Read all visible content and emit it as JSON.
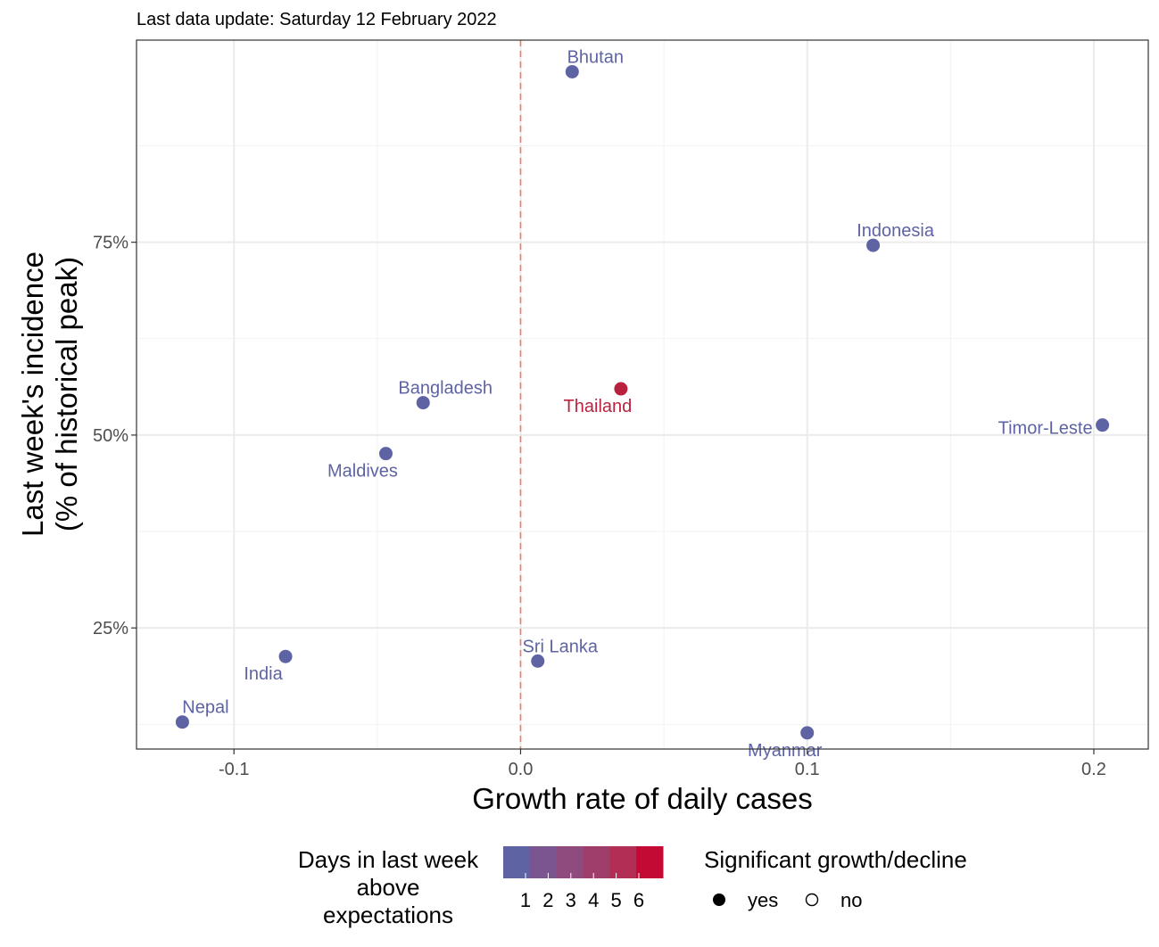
{
  "subtitle": "Last data update: Saturday 12 February 2022",
  "chart_data": {
    "type": "scatter",
    "title": "",
    "xlabel": "Growth rate of daily cases",
    "ylabel_lines": [
      "Last week's incidence",
      "(% of historical peak)"
    ],
    "xlim": [
      -0.134,
      0.219
    ],
    "ylim": [
      0.093,
      1.012
    ],
    "x_ticks": [
      -0.1,
      0.0,
      0.1,
      0.2
    ],
    "x_tick_labels": [
      "-0.1",
      "0.0",
      "0.1",
      "0.2"
    ],
    "y_ticks": [
      0.25,
      0.5,
      0.75
    ],
    "y_tick_labels": [
      "25%",
      "50%",
      "75%"
    ],
    "reference_line_x": 0,
    "grid": true,
    "points": [
      {
        "name": "Bhutan",
        "x": 0.018,
        "y": 0.971,
        "days": 1,
        "significant": "yes",
        "color": "#5e63a3"
      },
      {
        "name": "Indonesia",
        "x": 0.123,
        "y": 0.746,
        "days": 1,
        "significant": "yes",
        "color": "#5e63a3"
      },
      {
        "name": "Bangladesh",
        "x": -0.034,
        "y": 0.542,
        "days": 1,
        "significant": "yes",
        "color": "#5e63a3"
      },
      {
        "name": "Thailand",
        "x": 0.035,
        "y": 0.56,
        "days": 5,
        "significant": "yes",
        "color": "#b8223f"
      },
      {
        "name": "Timor-Leste",
        "x": 0.203,
        "y": 0.513,
        "days": 1,
        "significant": "yes",
        "color": "#5e63a3"
      },
      {
        "name": "Maldives",
        "x": -0.047,
        "y": 0.476,
        "days": 1,
        "significant": "yes",
        "color": "#5e63a3"
      },
      {
        "name": "India",
        "x": -0.082,
        "y": 0.213,
        "days": 1,
        "significant": "yes",
        "color": "#5e63a3"
      },
      {
        "name": "Sri Lanka",
        "x": 0.006,
        "y": 0.207,
        "days": 1,
        "significant": "yes",
        "color": "#5e63a3"
      },
      {
        "name": "Nepal",
        "x": -0.118,
        "y": 0.128,
        "days": 1,
        "significant": "yes",
        "color": "#5e63a3"
      },
      {
        "name": "Myanmar",
        "x": 0.1,
        "y": 0.114,
        "days": 1,
        "significant": "yes",
        "color": "#5e63a3"
      }
    ],
    "legend_color": {
      "title_lines": [
        "Days in last week",
        "above",
        "expectations"
      ],
      "labels": [
        "1",
        "2",
        "3",
        "4",
        "5",
        "6"
      ],
      "gradient_colors": [
        "#5e63a3",
        "#7a5590",
        "#8f4a7e",
        "#a03e6b",
        "#b32e55",
        "#c20a35"
      ]
    },
    "legend_shape": {
      "title": "Significant growth/decline",
      "items": [
        {
          "label": "yes",
          "filled": true
        },
        {
          "label": "no",
          "filled": false
        }
      ]
    }
  }
}
